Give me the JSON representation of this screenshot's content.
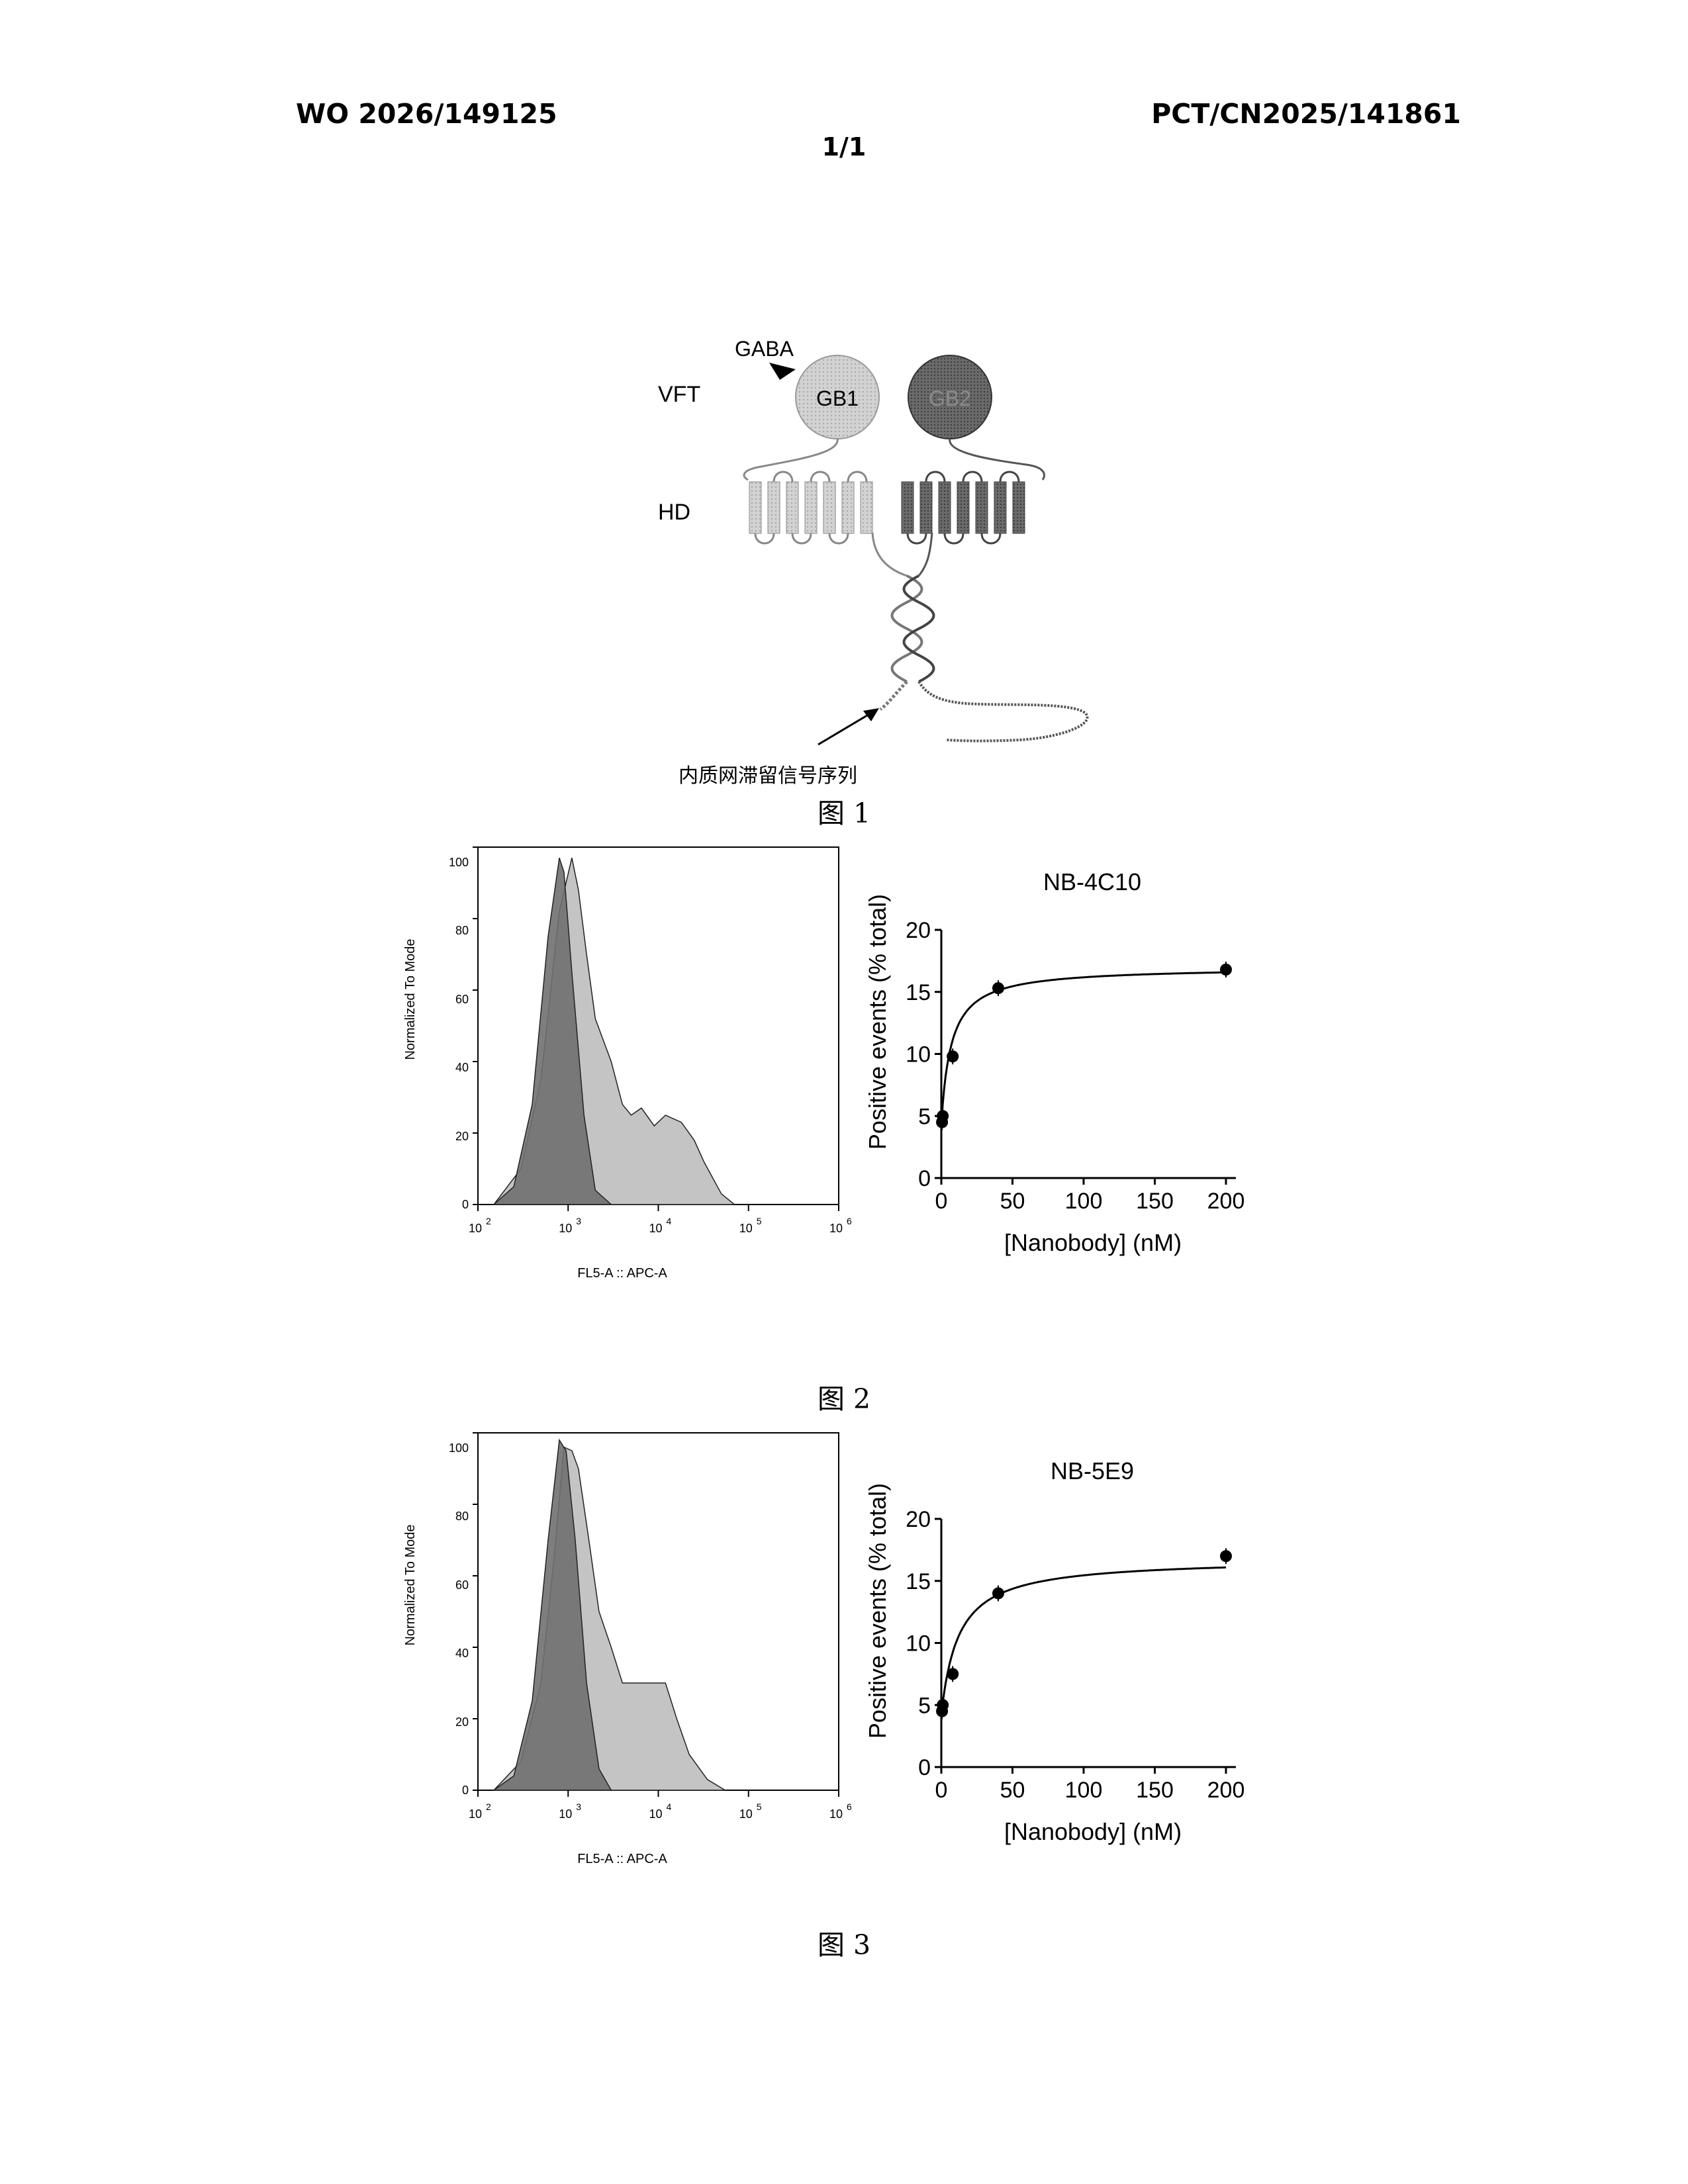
{
  "header": {
    "publication_number": "WO 2026/149125",
    "application_number": "PCT/CN2025/141861",
    "sheet": "1/1"
  },
  "figure1": {
    "caption": "图 1",
    "ligand": "GABA",
    "subunit1": "GB1",
    "subunit2": "GB2",
    "domain_vft": "VFT",
    "domain_hd": "HD",
    "er_signal": "内质网滞留信号序列"
  },
  "figure2": {
    "caption": "图 2",
    "histogram": {
      "ylabel": "Normalized To Mode",
      "xlabel": "FL5-A :: APC-A",
      "yticks": [
        "0",
        "20",
        "40",
        "60",
        "80",
        "100"
      ]
    },
    "binding": {
      "title": "NB-4C10",
      "ylabel": "Positive events (% total)",
      "xlabel": "[Nanobody] (nM)"
    }
  },
  "figure3": {
    "caption": "图 3",
    "histogram": {
      "ylabel": "Normalized To Mode",
      "xlabel": "FL5-A :: APC-A",
      "yticks": [
        "0",
        "20",
        "40",
        "60",
        "80",
        "100"
      ]
    },
    "binding": {
      "title": "NB-5E9",
      "ylabel": "Positive events (% total)",
      "xlabel": "[Nanobody] (nM)"
    }
  },
  "chart_data": [
    {
      "type": "area",
      "xscale": "log",
      "xlim": [
        100,
        1000000
      ],
      "ylim": [
        0,
        100
      ],
      "xticks": [
        100,
        1000,
        10000,
        100000,
        1000000
      ],
      "ylabel": "Normalized To Mode",
      "xlabel": "FL5-A :: APC-A",
      "series": [
        {
          "color": "#707070",
          "x": [
            150,
            250,
            400,
            600,
            800,
            900,
            1100,
            1500,
            2000,
            3000
          ],
          "y": [
            0,
            5,
            28,
            75,
            97,
            93,
            65,
            25,
            4,
            0
          ]
        },
        {
          "color": "#c4c4c4",
          "x": [
            150,
            300,
            500,
            800,
            1100,
            1300,
            1600,
            2000,
            3000,
            4000,
            5000,
            6500,
            9000,
            12000,
            18000,
            25000,
            32000,
            50000,
            70000
          ],
          "y": [
            0,
            10,
            35,
            82,
            97,
            88,
            70,
            52,
            40,
            28,
            25,
            27,
            22,
            25,
            23,
            18,
            12,
            3,
            0
          ]
        }
      ]
    },
    {
      "type": "scatter",
      "title": "NB-4C10",
      "xlabel": "[Nanobody] (nM)",
      "ylabel": "Positive events (% total)",
      "xlim": [
        0,
        200
      ],
      "ylim": [
        0,
        20
      ],
      "xticks": [
        0,
        50,
        100,
        150,
        200
      ],
      "yticks": [
        0,
        5,
        10,
        15,
        20
      ],
      "x": [
        0.5,
        1,
        8,
        40,
        200
      ],
      "y": [
        4.5,
        5,
        9.8,
        15.3,
        16.8
      ],
      "fit": {
        "bottom": 4.4,
        "top": 17.0,
        "half": 7
      }
    },
    {
      "type": "area",
      "xscale": "log",
      "xlim": [
        100,
        1000000
      ],
      "ylim": [
        0,
        100
      ],
      "xticks": [
        100,
        1000,
        10000,
        100000,
        1000000
      ],
      "ylabel": "Normalized To Mode",
      "xlabel": "FL5-A :: APC-A",
      "series": [
        {
          "color": "#707070",
          "x": [
            150,
            250,
            400,
            600,
            800,
            950,
            1200,
            1600,
            2200,
            3000
          ],
          "y": [
            0,
            4,
            25,
            70,
            98,
            95,
            70,
            30,
            6,
            0
          ]
        },
        {
          "color": "#c4c4c4",
          "x": [
            150,
            300,
            500,
            700,
            900,
            1100,
            1300,
            1700,
            2200,
            3000,
            4000,
            5500,
            7500,
            9500,
            12000,
            16000,
            22000,
            35000,
            55000
          ],
          "y": [
            0,
            8,
            30,
            65,
            96,
            95,
            90,
            70,
            50,
            40,
            30,
            30,
            30,
            30,
            30,
            20,
            10,
            3,
            0
          ]
        }
      ]
    },
    {
      "type": "scatter",
      "title": "NB-5E9",
      "xlabel": "[Nanobody] (nM)",
      "ylabel": "Positive events (% total)",
      "xlim": [
        0,
        200
      ],
      "ylim": [
        0,
        20
      ],
      "xticks": [
        0,
        50,
        100,
        150,
        200
      ],
      "yticks": [
        0,
        5,
        10,
        15,
        20
      ],
      "x": [
        0.5,
        1,
        8,
        40,
        200
      ],
      "y": [
        4.5,
        5,
        7.5,
        14,
        17
      ],
      "fit": {
        "bottom": 4.2,
        "top": 16.8,
        "half": 12
      }
    }
  ]
}
